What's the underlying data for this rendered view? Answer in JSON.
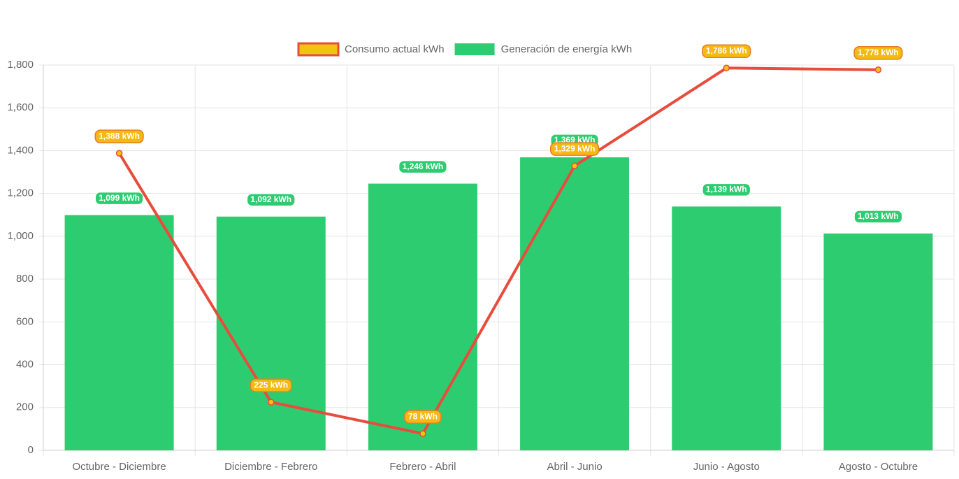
{
  "chart_data": {
    "type": "bar",
    "categories": [
      "Octubre - Diciembre",
      "Diciembre - Febrero",
      "Febrero - Abril",
      "Abril - Junio",
      "Junio - Agosto",
      "Agosto - Octubre"
    ],
    "series": [
      {
        "name": "Consumo actual kWh",
        "type": "line",
        "color": "#e74c3c",
        "point_color": "#f1c40f",
        "values": [
          1388,
          225,
          78,
          1329,
          1786,
          1778
        ],
        "value_labels": [
          "1,388 kWh",
          "225 kWh",
          "78 kWh",
          "1,329 kWh",
          "1,786 kWh",
          "1,778 kWh"
        ]
      },
      {
        "name": "Generación de energía kWh",
        "type": "bar",
        "color": "#2ecc71",
        "values": [
          1099,
          1092,
          1246,
          1369,
          1139,
          1013
        ],
        "value_labels": [
          "1,099 kWh",
          "1,092 kWh",
          "1,246 kWh",
          "1,369 kWh",
          "1,139 kWh",
          "1,013 kWh"
        ]
      }
    ],
    "ylim": [
      0,
      1800
    ],
    "yticks": [
      0,
      200,
      400,
      600,
      800,
      {
        "value": 1000,
        "label": "1,000"
      },
      {
        "value": 1200,
        "label": "1,200"
      },
      {
        "value": 1400,
        "label": "1,400"
      },
      {
        "value": 1600,
        "label": "1,600"
      },
      {
        "value": 1800,
        "label": "1,800"
      }
    ],
    "grid": true,
    "legend": "top"
  }
}
